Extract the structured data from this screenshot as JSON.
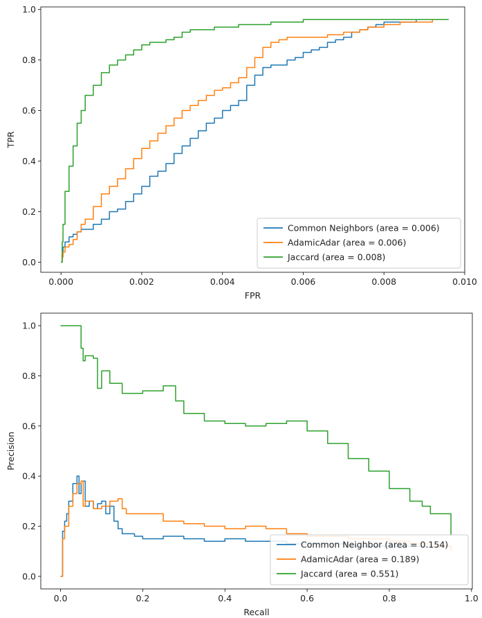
{
  "colors": {
    "blue": "#1f77b4",
    "orange": "#ff7f0e",
    "green": "#2ca02c"
  },
  "chart_data": [
    {
      "type": "line",
      "title": "",
      "xlabel": "FPR",
      "ylabel": "TPR",
      "xlim": [
        -0.0005,
        0.01
      ],
      "ylim": [
        -0.04,
        1.01
      ],
      "xticks": [
        0.0,
        0.002,
        0.004,
        0.006,
        0.008,
        0.01
      ],
      "xticklabels": [
        "0.000",
        "0.002",
        "0.004",
        "0.006",
        "0.008",
        "0.010"
      ],
      "yticks": [
        0.0,
        0.2,
        0.4,
        0.6,
        0.8,
        1.0
      ],
      "yticklabels": [
        "0.0",
        "0.2",
        "0.4",
        "0.6",
        "0.8",
        "1.0"
      ],
      "grid": false,
      "legend_position": "lower-right",
      "series": [
        {
          "name": "Common Neighbors (area = 0.006)",
          "color": "#1f77b4",
          "x": [
            0.0,
            3e-05,
            5e-05,
            0.0001,
            0.0002,
            0.0003,
            0.0004,
            0.0005,
            0.0006,
            0.0008,
            0.001,
            0.0012,
            0.0014,
            0.0016,
            0.0018,
            0.002,
            0.0022,
            0.0024,
            0.0026,
            0.0028,
            0.003,
            0.0032,
            0.0034,
            0.0036,
            0.0038,
            0.004,
            0.0042,
            0.0044,
            0.0046,
            0.0048,
            0.005,
            0.0052,
            0.0054,
            0.0056,
            0.0058,
            0.006,
            0.0062,
            0.0064,
            0.0066,
            0.0068,
            0.007,
            0.0072,
            0.0074,
            0.0076,
            0.0078,
            0.008,
            0.0084,
            0.0088,
            0.0092,
            0.0096
          ],
          "y": [
            0.0,
            0.03,
            0.06,
            0.08,
            0.1,
            0.11,
            0.12,
            0.13,
            0.13,
            0.15,
            0.17,
            0.2,
            0.21,
            0.24,
            0.27,
            0.3,
            0.34,
            0.36,
            0.39,
            0.43,
            0.46,
            0.49,
            0.52,
            0.55,
            0.57,
            0.6,
            0.62,
            0.64,
            0.7,
            0.74,
            0.77,
            0.78,
            0.78,
            0.8,
            0.81,
            0.83,
            0.84,
            0.85,
            0.87,
            0.88,
            0.89,
            0.91,
            0.92,
            0.93,
            0.94,
            0.95,
            0.95,
            0.96,
            0.96,
            0.96
          ]
        },
        {
          "name": "AdamicAdar (area = 0.006)",
          "color": "#ff7f0e",
          "x": [
            0.0,
            3e-05,
            5e-05,
            0.0001,
            0.0002,
            0.0003,
            0.0004,
            0.0005,
            0.0006,
            0.0008,
            0.001,
            0.0012,
            0.0014,
            0.0016,
            0.0018,
            0.002,
            0.0022,
            0.0024,
            0.0026,
            0.0028,
            0.003,
            0.0032,
            0.0034,
            0.0036,
            0.0038,
            0.004,
            0.0042,
            0.0044,
            0.0046,
            0.0048,
            0.005,
            0.0052,
            0.0054,
            0.0056,
            0.0058,
            0.006,
            0.0062,
            0.0064,
            0.0066,
            0.0068,
            0.007,
            0.0072,
            0.0074,
            0.0076,
            0.0078,
            0.008,
            0.0084,
            0.0088,
            0.0092,
            0.0096
          ],
          "y": [
            0.0,
            0.02,
            0.04,
            0.06,
            0.07,
            0.09,
            0.12,
            0.15,
            0.17,
            0.22,
            0.27,
            0.3,
            0.33,
            0.37,
            0.41,
            0.45,
            0.48,
            0.51,
            0.54,
            0.57,
            0.6,
            0.62,
            0.64,
            0.66,
            0.68,
            0.69,
            0.71,
            0.73,
            0.77,
            0.81,
            0.85,
            0.87,
            0.88,
            0.89,
            0.89,
            0.89,
            0.89,
            0.89,
            0.9,
            0.9,
            0.91,
            0.91,
            0.92,
            0.93,
            0.93,
            0.94,
            0.95,
            0.95,
            0.96,
            0.96
          ]
        },
        {
          "name": "Jaccard (area = 0.008)",
          "color": "#2ca02c",
          "x": [
            0.0,
            3e-05,
            5e-05,
            0.0001,
            0.0002,
            0.0003,
            0.0004,
            0.0005,
            0.0006,
            0.0008,
            0.001,
            0.0012,
            0.0014,
            0.0016,
            0.0018,
            0.002,
            0.0022,
            0.0024,
            0.0026,
            0.0028,
            0.003,
            0.0032,
            0.0034,
            0.0036,
            0.0038,
            0.004,
            0.0042,
            0.0044,
            0.0046,
            0.0048,
            0.005,
            0.0052,
            0.0054,
            0.0056,
            0.0058,
            0.006,
            0.0062,
            0.0064,
            0.0066,
            0.0068,
            0.007,
            0.0072,
            0.0074,
            0.0076,
            0.0078,
            0.008,
            0.0084,
            0.0088,
            0.0092,
            0.0096
          ],
          "y": [
            0.0,
            0.08,
            0.15,
            0.28,
            0.38,
            0.46,
            0.55,
            0.6,
            0.66,
            0.7,
            0.75,
            0.78,
            0.8,
            0.82,
            0.84,
            0.86,
            0.87,
            0.87,
            0.88,
            0.89,
            0.91,
            0.92,
            0.92,
            0.92,
            0.93,
            0.93,
            0.93,
            0.94,
            0.94,
            0.94,
            0.94,
            0.95,
            0.95,
            0.95,
            0.95,
            0.96,
            0.96,
            0.96,
            0.96,
            0.96,
            0.96,
            0.96,
            0.96,
            0.96,
            0.96,
            0.96,
            0.96,
            0.96,
            0.96,
            0.96
          ]
        }
      ]
    },
    {
      "type": "line",
      "title": "",
      "xlabel": "Recall",
      "ylabel": "Precision",
      "xlim": [
        -0.048,
        1.002
      ],
      "ylim": [
        -0.05,
        1.05
      ],
      "xticks": [
        0.0,
        0.2,
        0.4,
        0.6,
        0.8,
        1.0
      ],
      "xticklabels": [
        "0.0",
        "0.2",
        "0.4",
        "0.6",
        "0.8",
        "1.0"
      ],
      "yticks": [
        0.0,
        0.2,
        0.4,
        0.6,
        0.8,
        1.0
      ],
      "yticklabels": [
        "0.0",
        "0.2",
        "0.4",
        "0.6",
        "0.8",
        "1.0"
      ],
      "grid": false,
      "legend_position": "lower-right",
      "series": [
        {
          "name": "Common Neighbor (area = 0.154)",
          "color": "#1f77b4",
          "x": [
            0.0,
            0.005,
            0.01,
            0.015,
            0.02,
            0.03,
            0.04,
            0.045,
            0.05,
            0.06,
            0.07,
            0.08,
            0.09,
            0.1,
            0.11,
            0.12,
            0.13,
            0.14,
            0.15,
            0.18,
            0.2,
            0.25,
            0.3,
            0.35,
            0.4,
            0.45,
            0.5,
            0.55,
            0.6,
            0.65,
            0.7,
            0.75,
            0.8,
            0.85,
            0.9,
            0.95
          ],
          "y": [
            0.0,
            0.18,
            0.22,
            0.25,
            0.3,
            0.37,
            0.4,
            0.33,
            0.38,
            0.28,
            0.3,
            0.27,
            0.29,
            0.3,
            0.25,
            0.28,
            0.22,
            0.19,
            0.17,
            0.16,
            0.15,
            0.16,
            0.15,
            0.14,
            0.15,
            0.14,
            0.14,
            0.13,
            0.13,
            0.13,
            0.12,
            0.12,
            0.12,
            0.12,
            0.12,
            0.11
          ]
        },
        {
          "name": "AdamicAdar (area = 0.189)",
          "color": "#ff7f0e",
          "x": [
            0.0,
            0.005,
            0.01,
            0.02,
            0.03,
            0.04,
            0.05,
            0.055,
            0.06,
            0.08,
            0.1,
            0.12,
            0.14,
            0.15,
            0.16,
            0.2,
            0.25,
            0.3,
            0.35,
            0.4,
            0.45,
            0.5,
            0.55,
            0.6,
            0.65,
            0.7,
            0.75,
            0.8,
            0.85,
            0.9,
            0.95
          ],
          "y": [
            0.0,
            0.15,
            0.2,
            0.28,
            0.33,
            0.37,
            0.38,
            0.28,
            0.3,
            0.27,
            0.28,
            0.3,
            0.31,
            0.27,
            0.25,
            0.25,
            0.22,
            0.21,
            0.2,
            0.19,
            0.2,
            0.19,
            0.17,
            0.16,
            0.16,
            0.15,
            0.15,
            0.14,
            0.13,
            0.12,
            0.1
          ]
        },
        {
          "name": "Jaccard (area = 0.551)",
          "color": "#2ca02c",
          "x": [
            0.0,
            0.04,
            0.05,
            0.055,
            0.06,
            0.08,
            0.09,
            0.1,
            0.12,
            0.15,
            0.2,
            0.25,
            0.28,
            0.3,
            0.35,
            0.4,
            0.45,
            0.5,
            0.55,
            0.6,
            0.65,
            0.7,
            0.75,
            0.8,
            0.85,
            0.88,
            0.9,
            0.95
          ],
          "y": [
            1.0,
            1.0,
            0.91,
            0.86,
            0.88,
            0.87,
            0.75,
            0.82,
            0.77,
            0.73,
            0.74,
            0.76,
            0.7,
            0.65,
            0.62,
            0.61,
            0.6,
            0.61,
            0.62,
            0.58,
            0.53,
            0.47,
            0.42,
            0.35,
            0.3,
            0.28,
            0.25,
            0.16
          ]
        }
      ]
    }
  ]
}
